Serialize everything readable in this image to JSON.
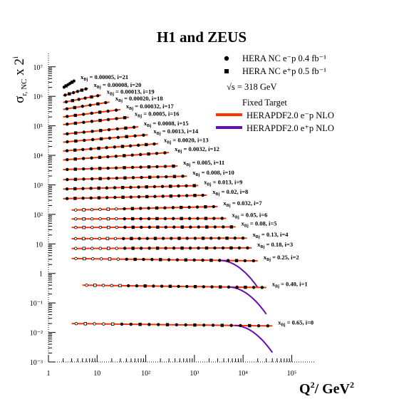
{
  "chart_data": {
    "type": "scatter",
    "title": "H1 and ZEUS",
    "xlabel": "Q²/ GeV²",
    "ylabel": "σr, NC x 2ⁱ",
    "x_scale": "log",
    "y_scale": "log",
    "xlim": [
      1,
      300000
    ],
    "ylim": [
      0.001,
      30000000
    ],
    "x_ticks": [
      "1",
      "10",
      "10²",
      "10³",
      "10⁴",
      "10⁵"
    ],
    "y_ticks": [
      "10⁻³",
      "10⁻²",
      "10⁻¹",
      "1",
      "10",
      "10²",
      "10³",
      "10⁴",
      "10⁵",
      "10⁶",
      "10⁷"
    ],
    "legend_position": "top-right",
    "legend": {
      "nc_em": "HERA NC e⁻p 0.4 fb⁻¹",
      "nc_ep": "HERA NC e⁺p 0.5 fb⁻¹",
      "sqrt_s": "√s = 318 GeV",
      "fixed_target": "Fixed Target",
      "fit_em": "HERAPDF2.0 e⁻p NLO",
      "fit_ep": "HERAPDF2.0 e⁺p NLO"
    },
    "colors": {
      "fit_em": "#ff3300",
      "fit_ep": "#6a0dad",
      "points": "#000000"
    },
    "bins": [
      {
        "i": 21,
        "x_label": "0.00005, i=21",
        "q2_range": [
          2,
          3.5
        ],
        "sigma_scaled": 1950000
      },
      {
        "i": 20,
        "x_label": "0.00008, i=20",
        "q2_range": [
          2,
          6.5
        ],
        "sigma_scaled": 1050000
      },
      {
        "i": 19,
        "x_label": "0.00013, i=19",
        "q2_range": [
          2,
          12
        ],
        "sigma_scaled": 620000
      },
      {
        "i": 18,
        "x_label": "0.00020, i=18",
        "q2_range": [
          2,
          18
        ],
        "sigma_scaled": 360000
      },
      {
        "i": 17,
        "x_label": "0.00032, i=17",
        "q2_range": [
          2,
          30
        ],
        "sigma_scaled": 200000
      },
      {
        "i": 16,
        "x_label": "0.0005, i=16",
        "q2_range": [
          2,
          45
        ],
        "sigma_scaled": 110000
      },
      {
        "i": 15,
        "x_label": "0.0008, i=15",
        "q2_range": [
          2,
          70
        ],
        "sigma_scaled": 52000
      },
      {
        "i": 14,
        "x_label": "0.0013, i=14",
        "q2_range": [
          2,
          110
        ],
        "sigma_scaled": 28000
      },
      {
        "i": 13,
        "x_label": "0.0020, i=13",
        "q2_range": [
          2,
          180
        ],
        "sigma_scaled": 14000
      },
      {
        "i": 12,
        "x_label": "0.0032, i=12",
        "q2_range": [
          2,
          300
        ],
        "sigma_scaled": 7000
      },
      {
        "i": 11,
        "x_label": "0.005, i=11",
        "q2_range": [
          2,
          450
        ],
        "sigma_scaled": 3300
      },
      {
        "i": 10,
        "x_label": "0.008, i=10",
        "q2_range": [
          2,
          700
        ],
        "sigma_scaled": 1500
      },
      {
        "i": 9,
        "x_label": "0.013, i=9",
        "q2_range": [
          2,
          1200
        ],
        "sigma_scaled": 720
      },
      {
        "i": 8,
        "x_label": "0.02, i=8",
        "q2_range": [
          2,
          1800
        ],
        "sigma_scaled": 340
      },
      {
        "i": 7,
        "x_label": "0.032, i=7",
        "q2_range": [
          3,
          3000
        ],
        "sigma_scaled": 140
      },
      {
        "i": 6,
        "x_label": "0.05, i=6",
        "q2_range": [
          3,
          4500
        ],
        "sigma_scaled": 70
      },
      {
        "i": 5,
        "x_label": "0.08, i=5",
        "q2_range": [
          3,
          7000
        ],
        "sigma_scaled": 36
      },
      {
        "i": 4,
        "x_label": "0.13, i=4",
        "q2_range": [
          3,
          12000
        ],
        "sigma_scaled": 15
      },
      {
        "i": 3,
        "x_label": "0.18, i=3",
        "q2_range": [
          3,
          15000
        ],
        "sigma_scaled": 7
      },
      {
        "i": 2,
        "x_label": "0.25, i=2",
        "q2_range": [
          3,
          20000
        ],
        "sigma_scaled": 3.2
      },
      {
        "i": 1,
        "x_label": "0.40, i=1",
        "q2_range": [
          5,
          30000
        ],
        "sigma_scaled": 0.4
      },
      {
        "i": 0,
        "x_label": "0.65, i=0",
        "q2_range": [
          3,
          40000
        ],
        "sigma_scaled": 0.02
      }
    ]
  }
}
